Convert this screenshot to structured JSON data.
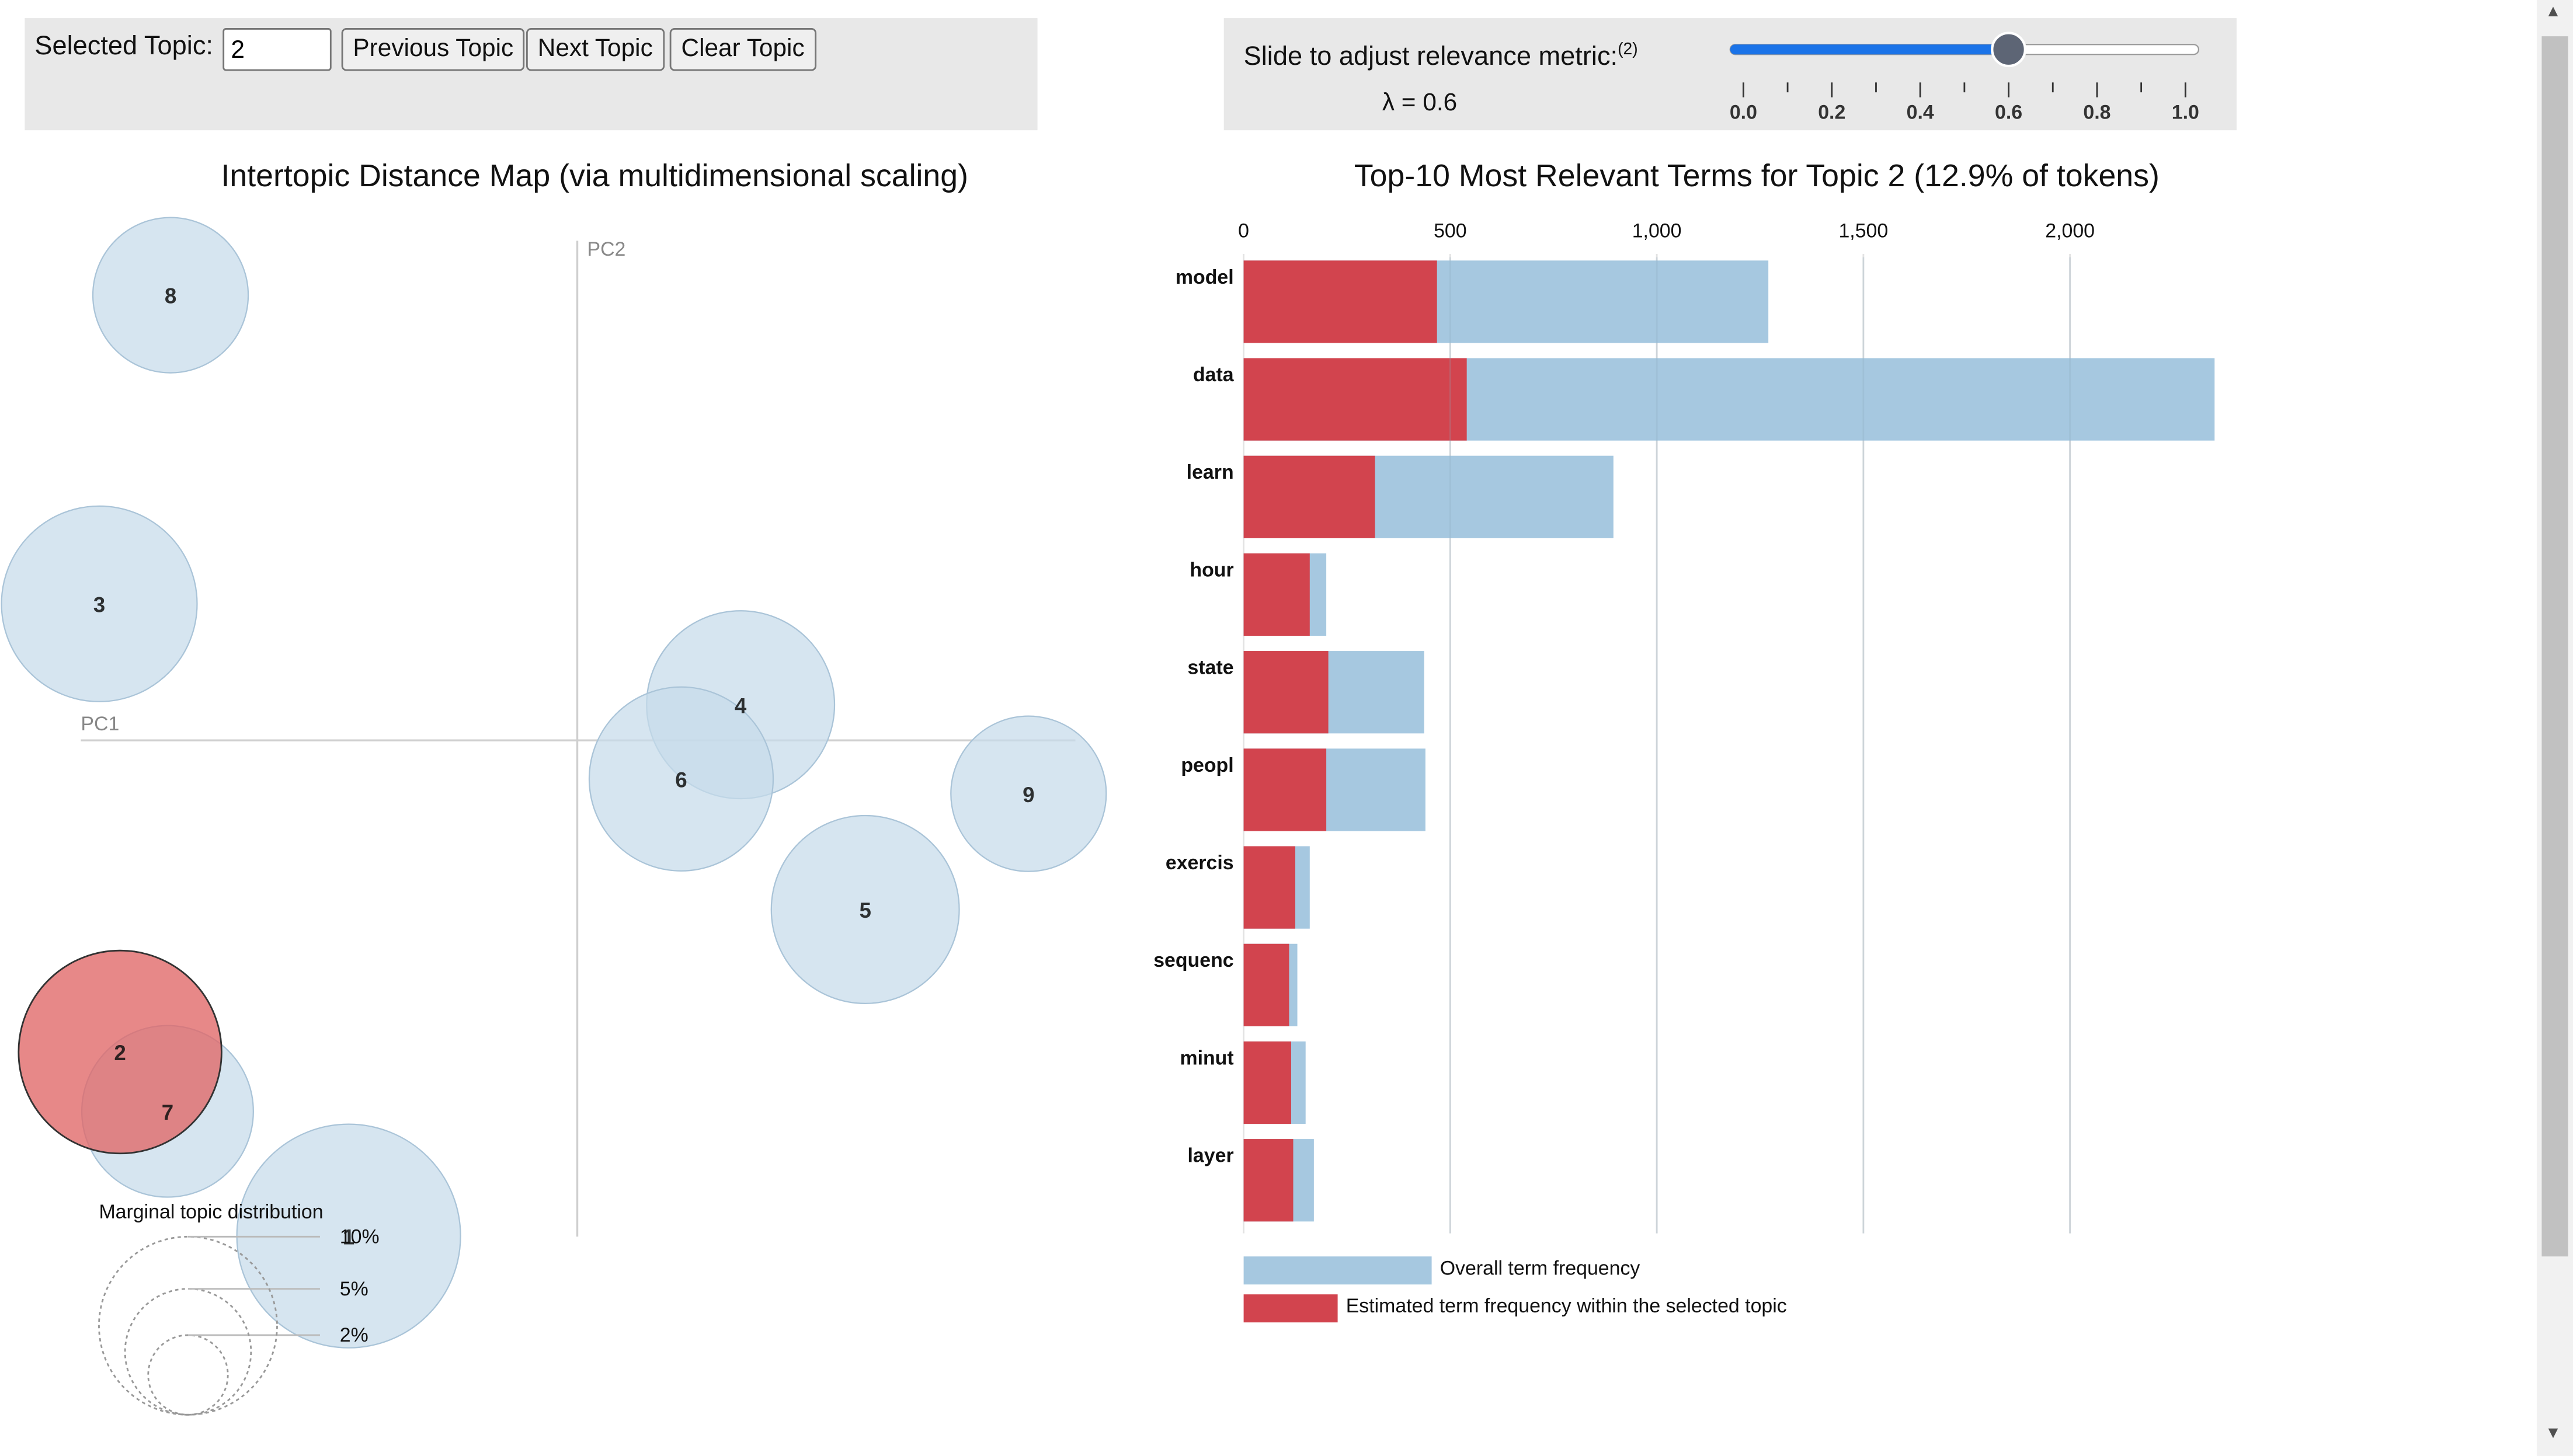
{
  "controls": {
    "selected_topic_label": "Selected Topic:",
    "selected_topic_value": "2",
    "prev_label": "Previous Topic",
    "next_label": "Next Topic",
    "clear_label": "Clear Topic",
    "slider_label": "Slide to adjust relevance metric:",
    "slider_footnote": "(2)",
    "lambda_text": "λ = 0.6",
    "lambda_value": 0.6,
    "slider_ticks": [
      "0.0",
      "0.2",
      "0.4",
      "0.6",
      "0.8",
      "1.0"
    ]
  },
  "colors": {
    "overall": "#a6c8e0",
    "topic": "#d2444e",
    "selected_circle": "#e06666",
    "circle": "#c6dbea",
    "slider_fill": "#1a73e8",
    "panel_bg": "#e8e8e8"
  },
  "chart_data": [
    {
      "type": "scatter",
      "title": "Intertopic Distance Map (via multidimensional scaling)",
      "xlabel": "PC1",
      "ylabel": "PC2",
      "points": [
        {
          "label": "1",
          "x": -0.077,
          "y": -0.167,
          "size": 1.7
        },
        {
          "label": "2",
          "x": -0.154,
          "y": -0.105,
          "size": 1.4
        },
        {
          "label": "3",
          "x": -0.161,
          "y": 0.046,
          "size": 1.3
        },
        {
          "label": "4",
          "x": 0.055,
          "y": 0.012,
          "size": 1.2
        },
        {
          "label": "5",
          "x": 0.097,
          "y": -0.057,
          "size": 1.2
        },
        {
          "label": "6",
          "x": 0.035,
          "y": -0.013,
          "size": 1.15
        },
        {
          "label": "7",
          "x": -0.138,
          "y": -0.125,
          "size": 1.0
        },
        {
          "label": "8",
          "x": -0.137,
          "y": 0.15,
          "size": 0.82
        },
        {
          "label": "9",
          "x": 0.152,
          "y": -0.018,
          "size": 0.82
        }
      ],
      "selected": "2",
      "legend": {
        "title": "Marginal topic distribution",
        "items": [
          {
            "label": "2%",
            "value": 0.02
          },
          {
            "label": "5%",
            "value": 0.05
          },
          {
            "label": "10%",
            "value": 0.1
          }
        ]
      }
    },
    {
      "type": "bar",
      "title": "Top-10 Most Relevant Terms for Topic 2 (12.9% of tokens)",
      "orientation": "horizontal",
      "categories": [
        "model",
        "data",
        "learn",
        "hour",
        "state",
        "peopl",
        "exercis",
        "sequenc",
        "minut",
        "layer"
      ],
      "xlim": [
        0,
        2400
      ],
      "x_ticks": [
        0,
        500,
        1000,
        1500,
        2000
      ],
      "x_tick_labels": [
        "0",
        "500",
        "1,000",
        "1,500",
        "2,000"
      ],
      "series": [
        {
          "name": "Overall term frequency",
          "values": [
            1270,
            2350,
            895,
            200,
            437,
            440,
            160,
            130,
            150,
            170
          ]
        },
        {
          "name": "Estimated term frequency within the selected topic",
          "values": [
            468,
            540,
            318,
            160,
            205,
            200,
            125,
            110,
            115,
            120
          ]
        }
      ]
    }
  ]
}
